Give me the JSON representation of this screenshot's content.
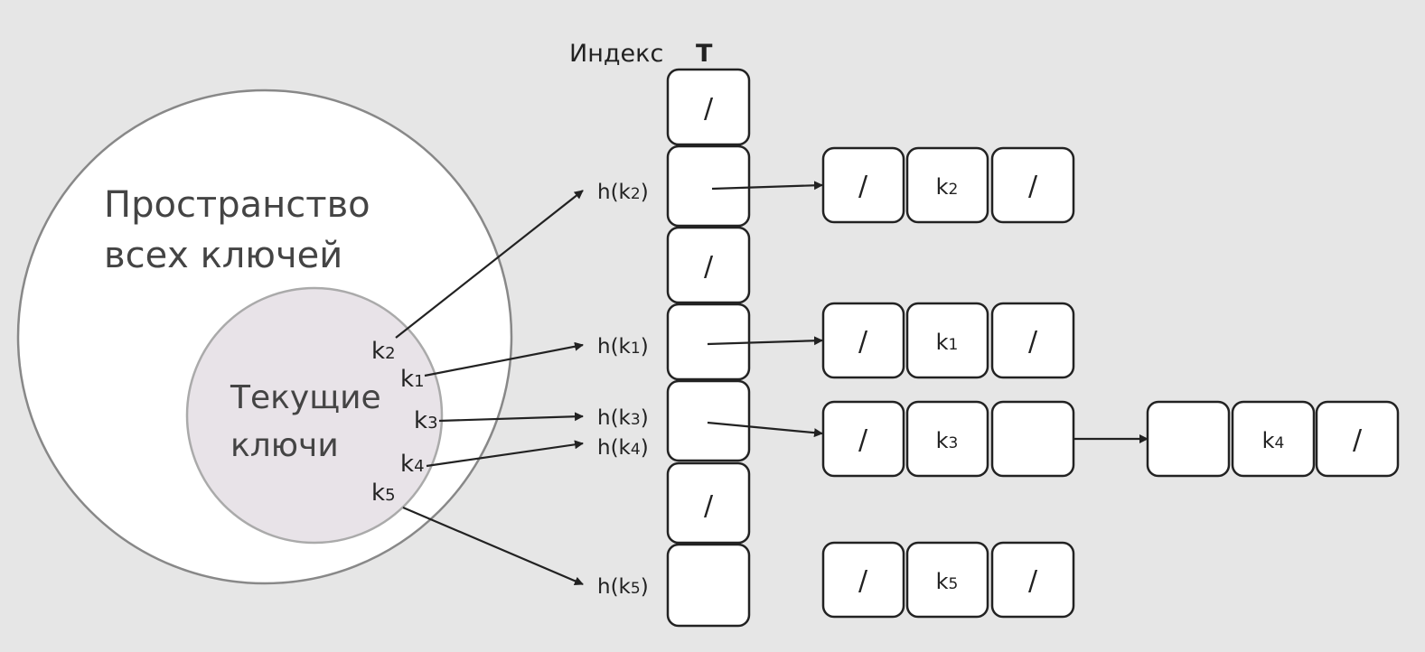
{
  "header": {
    "index_label": "Индекс",
    "table_label": "T"
  },
  "universe": {
    "line1": "Пространство",
    "line2": "всех ключей"
  },
  "current_keys": {
    "line1": "Текущие",
    "line2": "ключи",
    "keys": [
      {
        "base": "k",
        "sub": "2"
      },
      {
        "base": "k",
        "sub": "1"
      },
      {
        "base": "k",
        "sub": "3"
      },
      {
        "base": "k",
        "sub": "4"
      },
      {
        "base": "k",
        "sub": "5"
      }
    ]
  },
  "hash_labels": [
    {
      "pre": "h(k",
      "sub": "2",
      "post": ")"
    },
    {
      "pre": "h(k",
      "sub": "1",
      "post": ")"
    },
    {
      "pre": "h(k",
      "sub": "3",
      "post": ")"
    },
    {
      "pre": "h(k",
      "sub": "4",
      "post": ")"
    },
    {
      "pre": "h(k",
      "sub": "5",
      "post": ")"
    }
  ],
  "table_slots": [
    "/",
    "",
    "/",
    "",
    "",
    "/",
    ""
  ],
  "chains": [
    {
      "prev": "/",
      "key_base": "k",
      "key_sub": "2",
      "next": "/"
    },
    {
      "prev": "/",
      "key_base": "k",
      "key_sub": "1",
      "next": "/"
    },
    {
      "prev": "/",
      "key_base": "k",
      "key_sub": "3",
      "next": ""
    },
    {
      "prev": "",
      "key_base": "k",
      "key_sub": "4",
      "next": "/"
    },
    {
      "prev": "/",
      "key_base": "k",
      "key_sub": "5",
      "next": "/"
    }
  ]
}
